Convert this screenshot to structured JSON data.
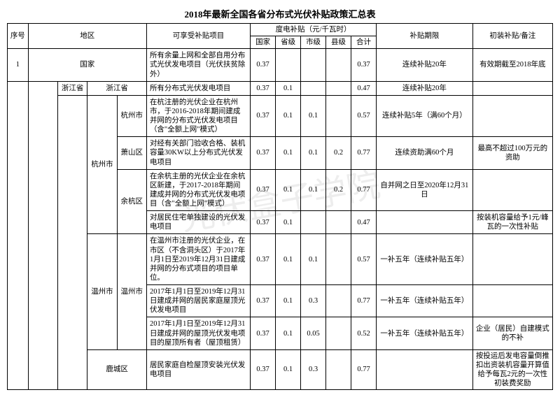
{
  "title": "2018年最新全国各省分布式光伏补贴政策汇总表",
  "watermark": "光伏盒子学院",
  "headers": {
    "seq": "序号",
    "region": "地区",
    "project": "可享受补贴项目",
    "subsidy_group": "度电补贴（元/千瓦时）",
    "sub_nation": "国家",
    "sub_prov": "省级",
    "sub_city": "市级",
    "sub_county": "县级",
    "sub_total": "合计",
    "period": "补贴期限",
    "note": "初装补贴/备注"
  },
  "rows": [
    {
      "seq": "1",
      "prov": "",
      "prov2": "国家",
      "city": "",
      "dist": "",
      "project": "所有余量上网和全部自用分布式光伏发电项目（光伏扶贫除外）",
      "n": "0.37",
      "p": "",
      "c": "",
      "d": "",
      "t": "0.37",
      "period": "连续补贴20年",
      "note": "有效期截至2018年底"
    },
    {
      "prov": "",
      "prov2": "浙江省",
      "city": "浙江省",
      "dist": "",
      "project": "所有分布式光伏发电项目",
      "n": "0.37",
      "p": "0.1",
      "c": "",
      "d": "",
      "t": "0.47",
      "period": "连续补贴20年",
      "note": ""
    },
    {
      "city": "杭州市",
      "dist": "杭州市",
      "project": "在杭注册的光伏企业在杭州市，于2016-2018年期间建成并网的分布式光伏发电项目（含\"全额上网\"模式）",
      "n": "0.37",
      "p": "0.1",
      "c": "0.1",
      "d": "",
      "t": "0.57",
      "period": "连续补贴5年（满60个月）",
      "note": ""
    },
    {
      "dist": "萧山区",
      "project": "对经有关部门验收合格、装机容量30KW以上分布式光伏发电项目",
      "n": "0.37",
      "p": "0.1",
      "c": "0.1",
      "d": "0.2",
      "t": "0.77",
      "period": "连续资助满60个月",
      "note": "最高不超过100万元的资助"
    },
    {
      "dist": "余杭区",
      "project": "在余杭主册的光伏企业在余杭区新建，于2017-2018年期间建成并网的分布式光伏发电项目（含\"全额上网\"模式）",
      "n": "0.37",
      "p": "0.1",
      "c": "0.1",
      "d": "0.2",
      "t": "0.77",
      "period": "自并网之日至2020年12月31日",
      "note": ""
    },
    {
      "dist": "",
      "project": "对居民住宅单独建设的光伏发电项目",
      "n": "0.37",
      "p": "0.1",
      "c": "",
      "d": "",
      "t": "0.47",
      "period": "",
      "note": "按装机容量给予1元/峰瓦的一次性补贴"
    },
    {
      "city": "温州市",
      "dist": "温州市",
      "project": "在温州市注册的光伏企业，在市区（不含洞头区）于2017年1月1日至2019年12月31日建成并网的分布式项目的项目单位。",
      "n": "0.37",
      "p": "0.1",
      "c": "0.1",
      "d": "",
      "t": "0.57",
      "period": "一补五年（连续补贴五年）",
      "note": ""
    },
    {
      "dist": "",
      "project": "2017年1月1日至2019年12月31日建成并网的居民家庭屋顶光伏发电项目",
      "n": "0.37",
      "p": "0.1",
      "c": "0.3",
      "d": "",
      "t": "0.77",
      "period": "一补五年（连续补贴五年）",
      "note": ""
    },
    {
      "dist": "",
      "project": "2017年1月1日至2019年12月31日建成并网的屋顶光伏发电项目的屋顶所有者（屋顶租赁）",
      "n": "0.37",
      "p": "0.1",
      "c": "0.05",
      "d": "",
      "t": "0.52",
      "period": "一补五年（连续补贴五年）",
      "note": "企业（居民）自建模式的不补"
    },
    {
      "dist": "鹿城区",
      "project": "居民家庭自检屋顶安装光伏发电项目",
      "n": "0.37",
      "p": "0.1",
      "c": "0.3",
      "d": "",
      "t": "0.77",
      "period": "",
      "note": "按投运后发电容量倒推扣出资装机容量开算值给予每瓦2元的一次性初装费奖励"
    }
  ],
  "style": {
    "border_color": "#000000",
    "background": "#ffffff",
    "font_size_body": 10.5,
    "font_size_title": 13,
    "watermark_color": "rgba(0,0,0,0.07)"
  }
}
